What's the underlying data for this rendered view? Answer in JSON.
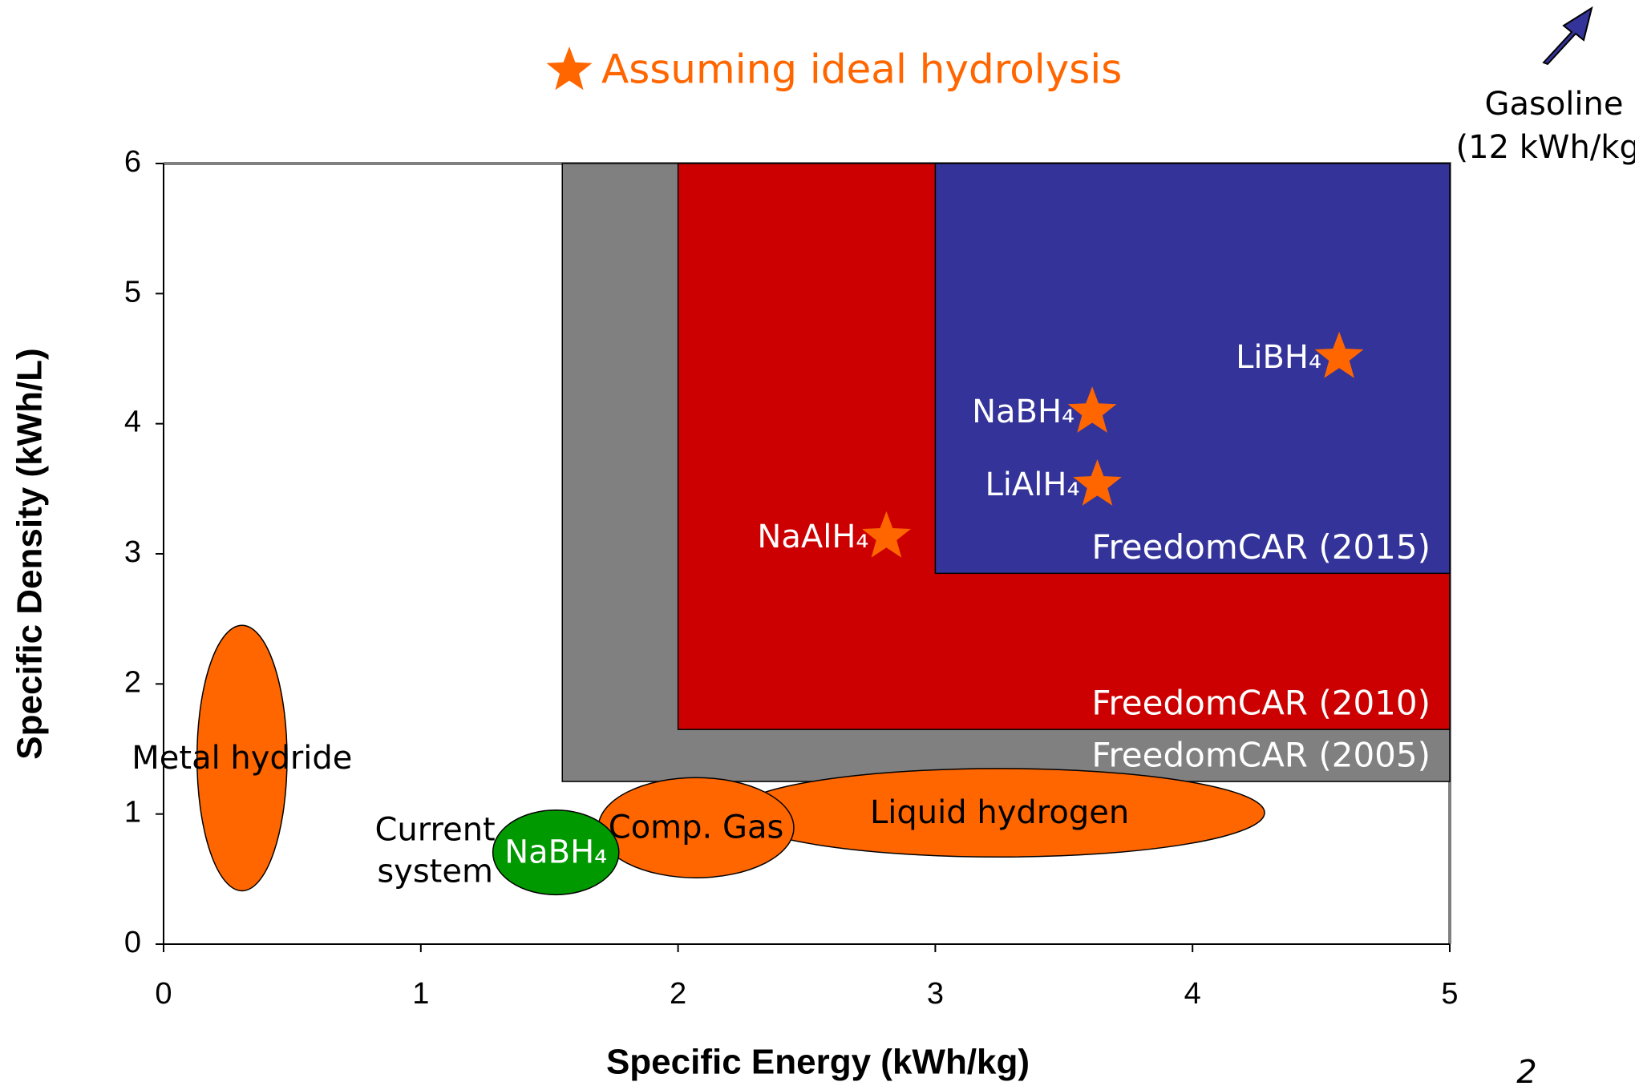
{
  "chart_data": {
    "type": "region-scatter",
    "title": "Assuming ideal hydrolysis",
    "x_label": "Specific Energy (kWh/kg)",
    "y_label": "Specific Density (kWh/L)",
    "xlim": [
      0,
      5
    ],
    "xticks": [
      0,
      1,
      2,
      3,
      4,
      5
    ],
    "ylim": [
      0,
      6
    ],
    "yticks": [
      0,
      1,
      2,
      3,
      4,
      5,
      6
    ],
    "regions": [
      {
        "name": "FreedomCAR (2005)",
        "color": "#808080",
        "x": [
          1.55,
          5
        ],
        "y": [
          1.25,
          6
        ]
      },
      {
        "name": "FreedomCAR (2010)",
        "color": "#cc0000",
        "x": [
          2.0,
          5
        ],
        "y": [
          1.65,
          6
        ]
      },
      {
        "name": "FreedomCAR (2015)",
        "color": "#333399",
        "x": [
          3.0,
          5
        ],
        "y": [
          2.85,
          6
        ]
      }
    ],
    "ellipses": [
      {
        "name": "Liquid hydrogen",
        "color": "#ff6600",
        "x": [
          2.22,
          4.28
        ],
        "y": [
          0.67,
          1.35
        ]
      },
      {
        "name": "Comp. Gas",
        "color": "#ff6600",
        "x": [
          1.69,
          2.45
        ],
        "y": [
          0.51,
          1.28
        ]
      },
      {
        "name": "NaBH₄",
        "color": "#009900",
        "x": [
          1.28,
          1.77
        ],
        "y": [
          0.38,
          1.03
        ]
      },
      {
        "name": "Metal hydride",
        "color": "#ff6600",
        "x": [
          0.13,
          0.48
        ],
        "y": [
          0.41,
          2.45
        ]
      }
    ],
    "current_label": [
      "Current",
      "system"
    ],
    "series": [
      {
        "name": "Assuming ideal hydrolysis",
        "color": "#ff6600",
        "labels": [
          "NaAlH₄",
          "LiAlH₄",
          "NaBH₄",
          "LiBH₄"
        ],
        "x": [
          2.81,
          3.63,
          3.61,
          4.57
        ],
        "values": [
          3.13,
          3.53,
          4.09,
          4.51
        ]
      }
    ],
    "gasoline": [
      "Gasoline",
      "(12 kWh/kg)"
    ],
    "page_number": "2"
  }
}
